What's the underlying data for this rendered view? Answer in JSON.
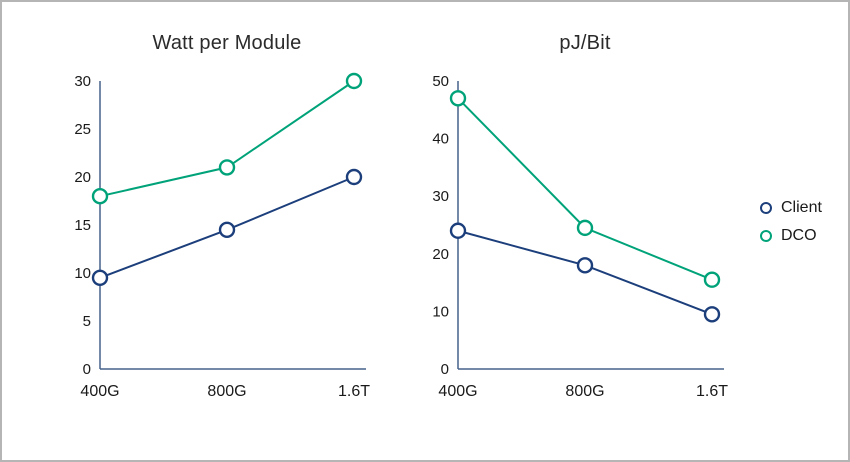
{
  "colors": {
    "client": "#1c3f7c",
    "dco": "#00a379",
    "axis": "#46608a",
    "text": "#1a1a1a",
    "title": "#2b2b2b",
    "border": "#b5b5b5"
  },
  "legend": {
    "position": "right",
    "items": [
      {
        "label": "Client",
        "series": "client"
      },
      {
        "label": "DCO",
        "series": "dco"
      }
    ]
  },
  "chart_data": [
    {
      "type": "line",
      "title": "Watt per Module",
      "xlabel": "",
      "ylabel": "",
      "grid": false,
      "categories": [
        "400G",
        "800G",
        "1.6T"
      ],
      "series": [
        {
          "name": "Client",
          "key": "client",
          "values": [
            9.5,
            14.5,
            20
          ]
        },
        {
          "name": "DCO",
          "key": "dco",
          "values": [
            18,
            21,
            30
          ]
        }
      ],
      "ylim": [
        0,
        30
      ],
      "yticks": [
        0,
        5,
        10,
        15,
        20,
        25,
        30
      ]
    },
    {
      "type": "line",
      "title": "pJ/Bit",
      "xlabel": "",
      "ylabel": "",
      "grid": false,
      "categories": [
        "400G",
        "800G",
        "1.6T"
      ],
      "series": [
        {
          "name": "Client",
          "key": "client",
          "values": [
            24,
            18,
            9.5
          ]
        },
        {
          "name": "DCO",
          "key": "dco",
          "values": [
            47,
            24.5,
            15.5
          ]
        }
      ],
      "ylim": [
        0,
        50
      ],
      "yticks": [
        0,
        10,
        20,
        30,
        40,
        50
      ]
    }
  ]
}
